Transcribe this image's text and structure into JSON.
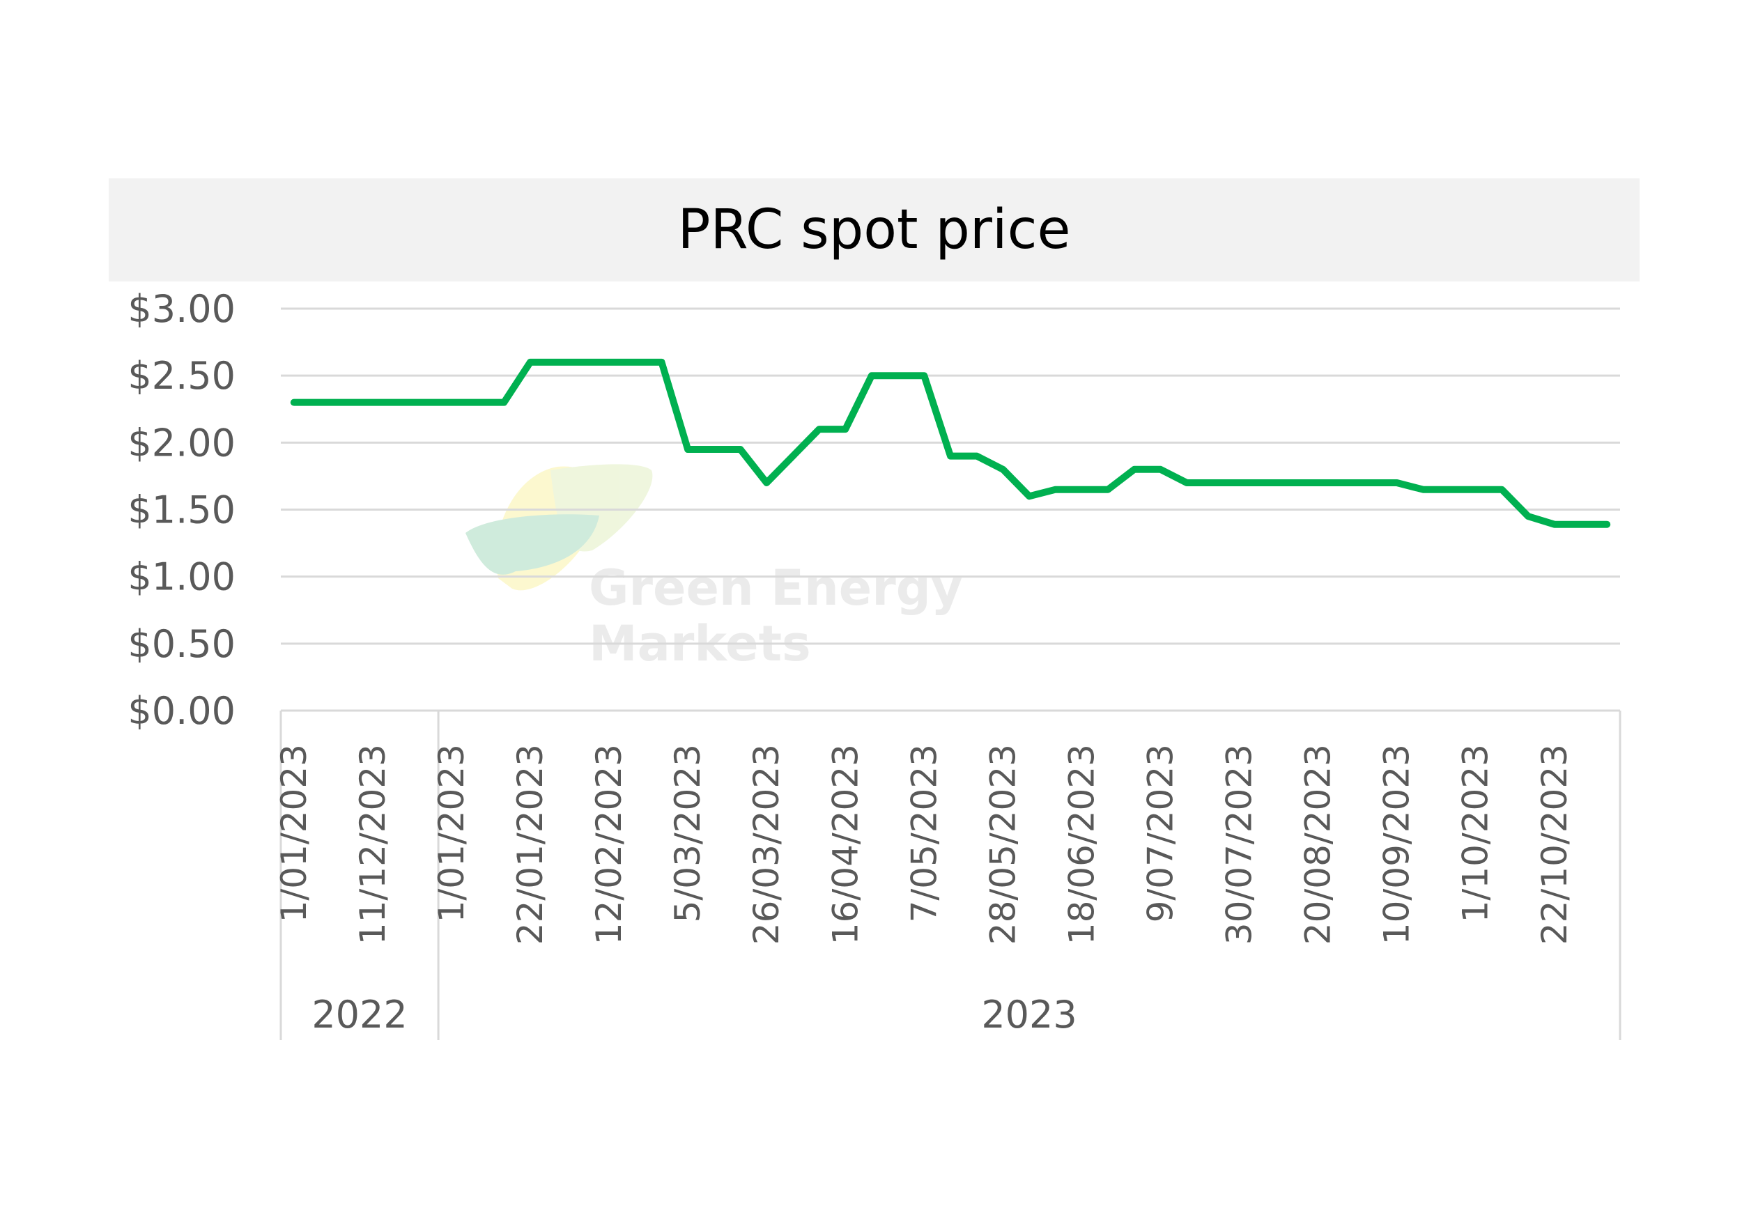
{
  "chart_data": {
    "type": "line",
    "title": "PRC spot price",
    "xlabel": "",
    "ylabel": "",
    "ylim": [
      0,
      3
    ],
    "yticks": [
      "$0.00",
      "$0.50",
      "$1.00",
      "$1.50",
      "$2.00",
      "$2.50",
      "$3.00"
    ],
    "x_tick_labels": [
      "1/01/2023",
      "11/12/2023",
      "1/01/2023",
      "22/01/2023",
      "12/02/2023",
      "5/03/2023",
      "26/03/2023",
      "16/04/2023",
      "7/05/2023",
      "28/05/2023",
      "18/06/2023",
      "9/07/2023",
      "30/07/2023",
      "20/08/2023",
      "10/09/2023",
      "1/10/2023",
      "22/10/2023"
    ],
    "year_groups": [
      {
        "label": "2022",
        "count": 6
      },
      {
        "label": "2023",
        "count": 45
      }
    ],
    "grid": true,
    "legend": "none",
    "line_color": "#00b050",
    "series": [
      {
        "values": [
          2.3,
          2.3,
          2.3,
          2.3,
          2.3,
          2.3,
          2.3,
          2.3,
          2.3,
          2.6,
          2.6,
          2.6,
          2.6,
          2.6,
          2.6,
          1.95,
          1.95,
          1.95,
          1.7,
          1.9,
          2.1,
          2.1,
          2.5,
          2.5,
          2.5,
          1.9,
          1.9,
          1.8,
          1.6,
          1.65,
          1.65,
          1.65,
          1.8,
          1.8,
          1.7,
          1.7,
          1.7,
          1.7,
          1.7,
          1.7,
          1.7,
          1.7,
          1.7,
          1.65,
          1.65,
          1.65,
          1.65,
          1.45,
          1.39,
          1.39,
          1.39
        ]
      }
    ]
  },
  "watermark": {
    "line1": "Green Energy",
    "line2": "Markets"
  }
}
